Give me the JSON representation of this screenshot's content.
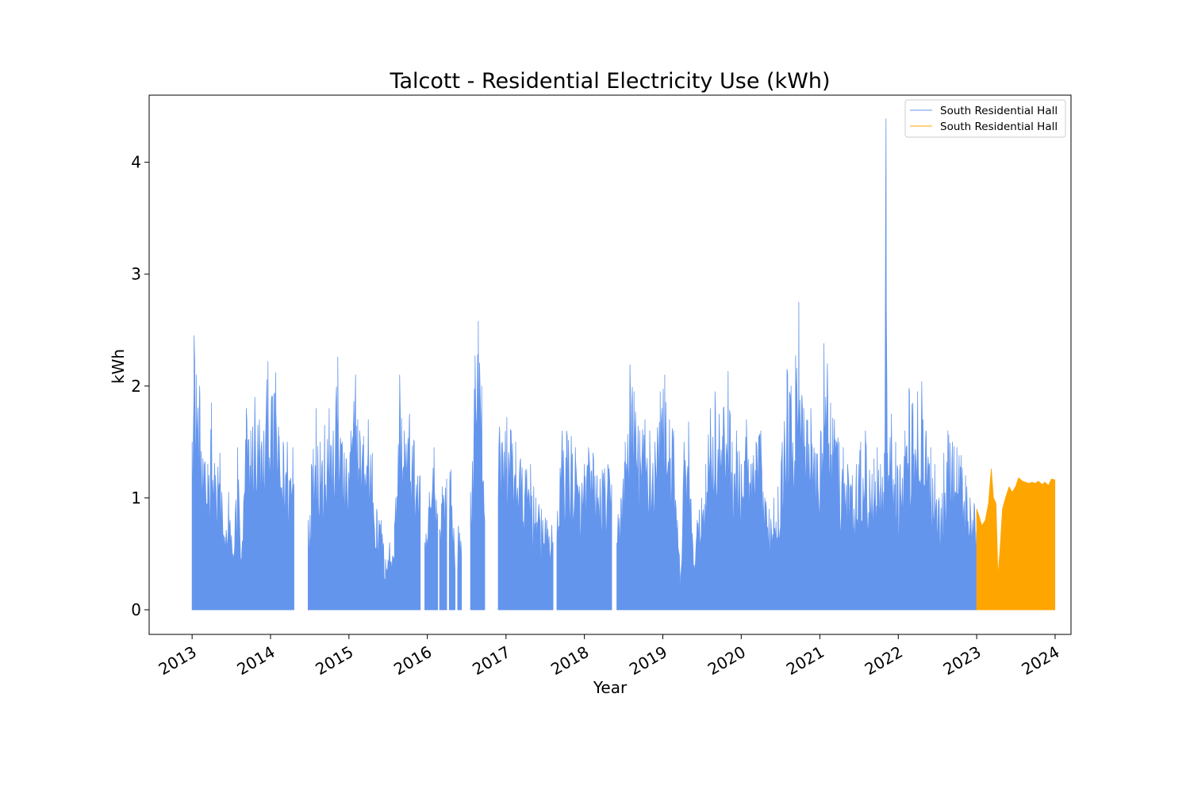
{
  "chart_data": {
    "type": "area",
    "title": "Talcott - Residential Electricity Use (kWh)",
    "xlabel": "Year",
    "ylabel": "kWh",
    "x_range": [
      "2012-06-15",
      "2024-03-15"
    ],
    "ylim": [
      -0.22,
      4.6
    ],
    "x_ticks": [
      "2013",
      "2014",
      "2015",
      "2016",
      "2017",
      "2018",
      "2019",
      "2020",
      "2021",
      "2022",
      "2023",
      "2024"
    ],
    "y_ticks": [
      0,
      1,
      2,
      3,
      4
    ],
    "grid": false,
    "legend_position": "top-right",
    "series": [
      {
        "name": "South Residential Hall",
        "color": "#6495ed",
        "fill": true,
        "gaps": [
          [
            "2014-04-20",
            "2014-06-25"
          ],
          [
            "2015-12-01",
            "2015-12-20"
          ],
          [
            "2016-02-20",
            "2016-02-26"
          ],
          [
            "2016-04-01",
            "2016-04-10"
          ],
          [
            "2016-05-10",
            "2016-05-20"
          ],
          [
            "2016-06-10",
            "2016-07-20"
          ],
          [
            "2016-09-25",
            "2016-11-25"
          ],
          [
            "2017-08-10",
            "2017-08-25"
          ],
          [
            "2018-05-10",
            "2018-05-30"
          ]
        ],
        "points": [
          [
            "2013-01-01",
            1.5
          ],
          [
            "2013-01-10",
            2.45
          ],
          [
            "2013-01-20",
            2.1
          ],
          [
            "2013-02-05",
            2.0
          ],
          [
            "2013-02-20",
            1.35
          ],
          [
            "2013-03-15",
            1.3
          ],
          [
            "2013-04-01",
            1.85
          ],
          [
            "2013-04-20",
            1.2
          ],
          [
            "2013-05-10",
            1.4
          ],
          [
            "2013-06-01",
            0.65
          ],
          [
            "2013-06-20",
            1.05
          ],
          [
            "2013-07-10",
            0.5
          ],
          [
            "2013-08-01",
            1.45
          ],
          [
            "2013-08-20",
            0.5
          ],
          [
            "2013-09-10",
            1.8
          ],
          [
            "2013-10-01",
            1.6
          ],
          [
            "2013-10-20",
            1.9
          ],
          [
            "2013-11-10",
            1.7
          ],
          [
            "2013-12-01",
            1.6
          ],
          [
            "2013-12-20",
            2.22
          ],
          [
            "2014-01-10",
            1.9
          ],
          [
            "2014-01-25",
            2.12
          ],
          [
            "2014-02-10",
            1.55
          ],
          [
            "2014-03-01",
            1.5
          ],
          [
            "2014-03-20",
            1.5
          ],
          [
            "2014-04-15",
            1.45
          ],
          [
            "2014-06-25",
            0.8
          ],
          [
            "2014-07-10",
            1.3
          ],
          [
            "2014-08-01",
            1.8
          ],
          [
            "2014-08-20",
            1.5
          ],
          [
            "2014-09-10",
            1.65
          ],
          [
            "2014-10-01",
            1.8
          ],
          [
            "2014-10-20",
            1.6
          ],
          [
            "2014-11-10",
            2.26
          ],
          [
            "2014-12-01",
            1.5
          ],
          [
            "2014-12-20",
            1.35
          ],
          [
            "2015-01-10",
            1.6
          ],
          [
            "2015-02-01",
            2.1
          ],
          [
            "2015-02-20",
            1.6
          ],
          [
            "2015-03-10",
            1.55
          ],
          [
            "2015-04-01",
            1.7
          ],
          [
            "2015-04-20",
            1.4
          ],
          [
            "2015-05-10",
            0.9
          ],
          [
            "2015-06-01",
            0.8
          ],
          [
            "2015-06-20",
            0.45
          ],
          [
            "2015-07-10",
            0.6
          ],
          [
            "2015-08-01",
            0.75
          ],
          [
            "2015-08-25",
            2.1
          ],
          [
            "2015-09-15",
            1.6
          ],
          [
            "2015-10-10",
            1.75
          ],
          [
            "2015-11-01",
            1.5
          ],
          [
            "2015-11-28",
            1.2
          ],
          [
            "2015-12-20",
            0.6
          ],
          [
            "2016-01-10",
            1.05
          ],
          [
            "2016-02-01",
            1.45
          ],
          [
            "2016-02-20",
            1.0
          ],
          [
            "2016-03-10",
            1.1
          ],
          [
            "2016-04-01",
            1.3
          ],
          [
            "2016-04-20",
            1.25
          ],
          [
            "2016-05-10",
            0.6
          ],
          [
            "2016-05-25",
            0.75
          ],
          [
            "2016-06-10",
            0.6
          ],
          [
            "2016-07-20",
            1.05
          ],
          [
            "2016-08-10",
            2.27
          ],
          [
            "2016-08-25",
            2.58
          ],
          [
            "2016-09-10",
            2.0
          ],
          [
            "2016-09-25",
            1.2
          ],
          [
            "2016-11-25",
            1.78
          ],
          [
            "2016-12-15",
            1.5
          ],
          [
            "2017-01-05",
            1.72
          ],
          [
            "2017-01-25",
            1.6
          ],
          [
            "2017-02-15",
            1.5
          ],
          [
            "2017-03-10",
            1.35
          ],
          [
            "2017-04-01",
            1.25
          ],
          [
            "2017-04-25",
            1.3
          ],
          [
            "2017-05-20",
            1.0
          ],
          [
            "2017-06-15",
            0.9
          ],
          [
            "2017-07-10",
            0.8
          ],
          [
            "2017-08-10",
            0.75
          ],
          [
            "2017-08-25",
            1.0
          ],
          [
            "2017-09-20",
            1.6
          ],
          [
            "2017-10-10",
            1.6
          ],
          [
            "2017-11-01",
            1.55
          ],
          [
            "2017-11-20",
            1.45
          ],
          [
            "2017-12-10",
            1.1
          ],
          [
            "2018-01-01",
            1.3
          ],
          [
            "2018-01-20",
            1.45
          ],
          [
            "2018-02-10",
            1.4
          ],
          [
            "2018-03-01",
            1.2
          ],
          [
            "2018-03-25",
            1.25
          ],
          [
            "2018-04-20",
            1.3
          ],
          [
            "2018-05-10",
            1.2
          ],
          [
            "2018-05-30",
            1.1
          ],
          [
            "2018-06-20",
            1.0
          ],
          [
            "2018-07-10",
            1.5
          ],
          [
            "2018-08-01",
            2.19
          ],
          [
            "2018-08-20",
            1.95
          ],
          [
            "2018-09-15",
            1.6
          ],
          [
            "2018-10-10",
            1.7
          ],
          [
            "2018-11-01",
            1.6
          ],
          [
            "2018-11-25",
            1.5
          ],
          [
            "2018-12-20",
            1.95
          ],
          [
            "2019-01-10",
            2.1
          ],
          [
            "2019-02-01",
            1.7
          ],
          [
            "2019-02-20",
            1.6
          ],
          [
            "2019-03-10",
            0.8
          ],
          [
            "2019-03-25",
            0.3
          ],
          [
            "2019-04-10",
            1.5
          ],
          [
            "2019-05-01",
            1.68
          ],
          [
            "2019-05-20",
            0.6
          ],
          [
            "2019-06-10",
            0.8
          ],
          [
            "2019-07-01",
            1.0
          ],
          [
            "2019-07-20",
            1.3
          ],
          [
            "2019-08-10",
            1.8
          ],
          [
            "2019-09-01",
            1.95
          ],
          [
            "2019-09-20",
            1.75
          ],
          [
            "2019-10-10",
            1.8
          ],
          [
            "2019-11-01",
            2.13
          ],
          [
            "2019-11-20",
            1.5
          ],
          [
            "2019-12-10",
            1.6
          ],
          [
            "2020-01-01",
            1.3
          ],
          [
            "2020-01-25",
            1.7
          ],
          [
            "2020-02-15",
            1.3
          ],
          [
            "2020-03-10",
            1.5
          ],
          [
            "2020-04-01",
            1.6
          ],
          [
            "2020-04-20",
            1.0
          ],
          [
            "2020-05-10",
            0.9
          ],
          [
            "2020-06-01",
            1.0
          ],
          [
            "2020-06-20",
            1.1
          ],
          [
            "2020-07-10",
            1.5
          ],
          [
            "2020-08-01",
            2.15
          ],
          [
            "2020-08-20",
            2.0
          ],
          [
            "2020-09-10",
            2.27
          ],
          [
            "2020-09-25",
            2.75
          ],
          [
            "2020-10-10",
            1.9
          ],
          [
            "2020-11-01",
            1.7
          ],
          [
            "2020-11-20",
            1.8
          ],
          [
            "2020-12-10",
            1.4
          ],
          [
            "2021-01-05",
            1.6
          ],
          [
            "2021-01-20",
            2.38
          ],
          [
            "2021-02-05",
            2.2
          ],
          [
            "2021-02-20",
            1.85
          ],
          [
            "2021-03-10",
            1.7
          ],
          [
            "2021-04-01",
            1.5
          ],
          [
            "2021-04-20",
            1.45
          ],
          [
            "2021-05-10",
            1.3
          ],
          [
            "2021-06-01",
            1.2
          ],
          [
            "2021-06-20",
            1.3
          ],
          [
            "2021-07-10",
            1.5
          ],
          [
            "2021-08-01",
            1.6
          ],
          [
            "2021-08-20",
            1.25
          ],
          [
            "2021-09-10",
            1.35
          ],
          [
            "2021-09-25",
            1.45
          ],
          [
            "2021-10-10",
            1.3
          ],
          [
            "2021-10-28",
            1.4
          ],
          [
            "2021-11-05",
            4.39
          ],
          [
            "2021-11-12",
            1.4
          ],
          [
            "2021-11-30",
            1.75
          ],
          [
            "2021-12-20",
            1.5
          ],
          [
            "2022-01-10",
            1.3
          ],
          [
            "2022-02-01",
            1.6
          ],
          [
            "2022-02-20",
            1.98
          ],
          [
            "2022-03-10",
            1.85
          ],
          [
            "2022-04-01",
            1.95
          ],
          [
            "2022-04-20",
            2.04
          ],
          [
            "2022-05-10",
            1.6
          ],
          [
            "2022-06-01",
            1.45
          ],
          [
            "2022-06-20",
            1.3
          ],
          [
            "2022-07-10",
            1.0
          ],
          [
            "2022-08-01",
            1.4
          ],
          [
            "2022-08-20",
            1.6
          ],
          [
            "2022-09-10",
            1.5
          ],
          [
            "2022-10-01",
            1.45
          ],
          [
            "2022-10-20",
            1.38
          ],
          [
            "2022-11-10",
            1.2
          ],
          [
            "2022-12-01",
            1.0
          ],
          [
            "2022-12-20",
            0.95
          ],
          [
            "2023-01-01",
            0.9
          ]
        ]
      },
      {
        "name": "South Residential Hall",
        "color": "#ffa500",
        "fill": true,
        "gaps": [],
        "points": [
          [
            "2023-01-01",
            0.9
          ],
          [
            "2023-01-10",
            0.85
          ],
          [
            "2023-01-25",
            0.75
          ],
          [
            "2023-02-10",
            0.8
          ],
          [
            "2023-02-25",
            0.95
          ],
          [
            "2023-03-10",
            1.26
          ],
          [
            "2023-03-20",
            1.0
          ],
          [
            "2023-04-01",
            0.95
          ],
          [
            "2023-04-10",
            0.3
          ],
          [
            "2023-04-20",
            0.55
          ],
          [
            "2023-05-01",
            0.9
          ],
          [
            "2023-05-15",
            1.0
          ],
          [
            "2023-06-01",
            1.1
          ],
          [
            "2023-06-15",
            1.05
          ],
          [
            "2023-07-01",
            1.1
          ],
          [
            "2023-07-15",
            1.18
          ],
          [
            "2023-08-01",
            1.15
          ],
          [
            "2023-08-15",
            1.14
          ],
          [
            "2023-09-01",
            1.13
          ],
          [
            "2023-09-15",
            1.14
          ],
          [
            "2023-10-01",
            1.13
          ],
          [
            "2023-10-15",
            1.15
          ],
          [
            "2023-11-01",
            1.12
          ],
          [
            "2023-11-15",
            1.14
          ],
          [
            "2023-12-01",
            1.11
          ],
          [
            "2023-12-15",
            1.17
          ],
          [
            "2024-01-01",
            1.16
          ]
        ]
      }
    ]
  }
}
